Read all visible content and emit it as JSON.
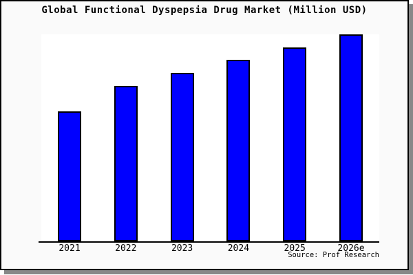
{
  "title": "Global Functional Dyspepsia Drug Market (Million USD)",
  "source_note": "Source: Prof Research",
  "frame": {
    "background": "#fafafa",
    "border_color": "#000000",
    "shadow_color": "#888888"
  },
  "chart_data": {
    "type": "bar",
    "title": "Global Functional Dyspepsia Drug Market (Million USD)",
    "categories": [
      "2021",
      "2022",
      "2023",
      "2024",
      "2025",
      "2026e"
    ],
    "values": [
      62.8,
      75.1,
      81.4,
      87.7,
      93.7,
      100
    ],
    "values_unit": "percent of tallest bar (y-axis is unlabeled in the chart)",
    "xlabel": "",
    "ylabel": "",
    "ylim": [
      0,
      100
    ],
    "grid": false,
    "legend": "none",
    "bar_color": "#0000ff",
    "bar_border_color": "#000000",
    "plot_background": "#ffffff",
    "source_note": "Source: Prof Research"
  }
}
